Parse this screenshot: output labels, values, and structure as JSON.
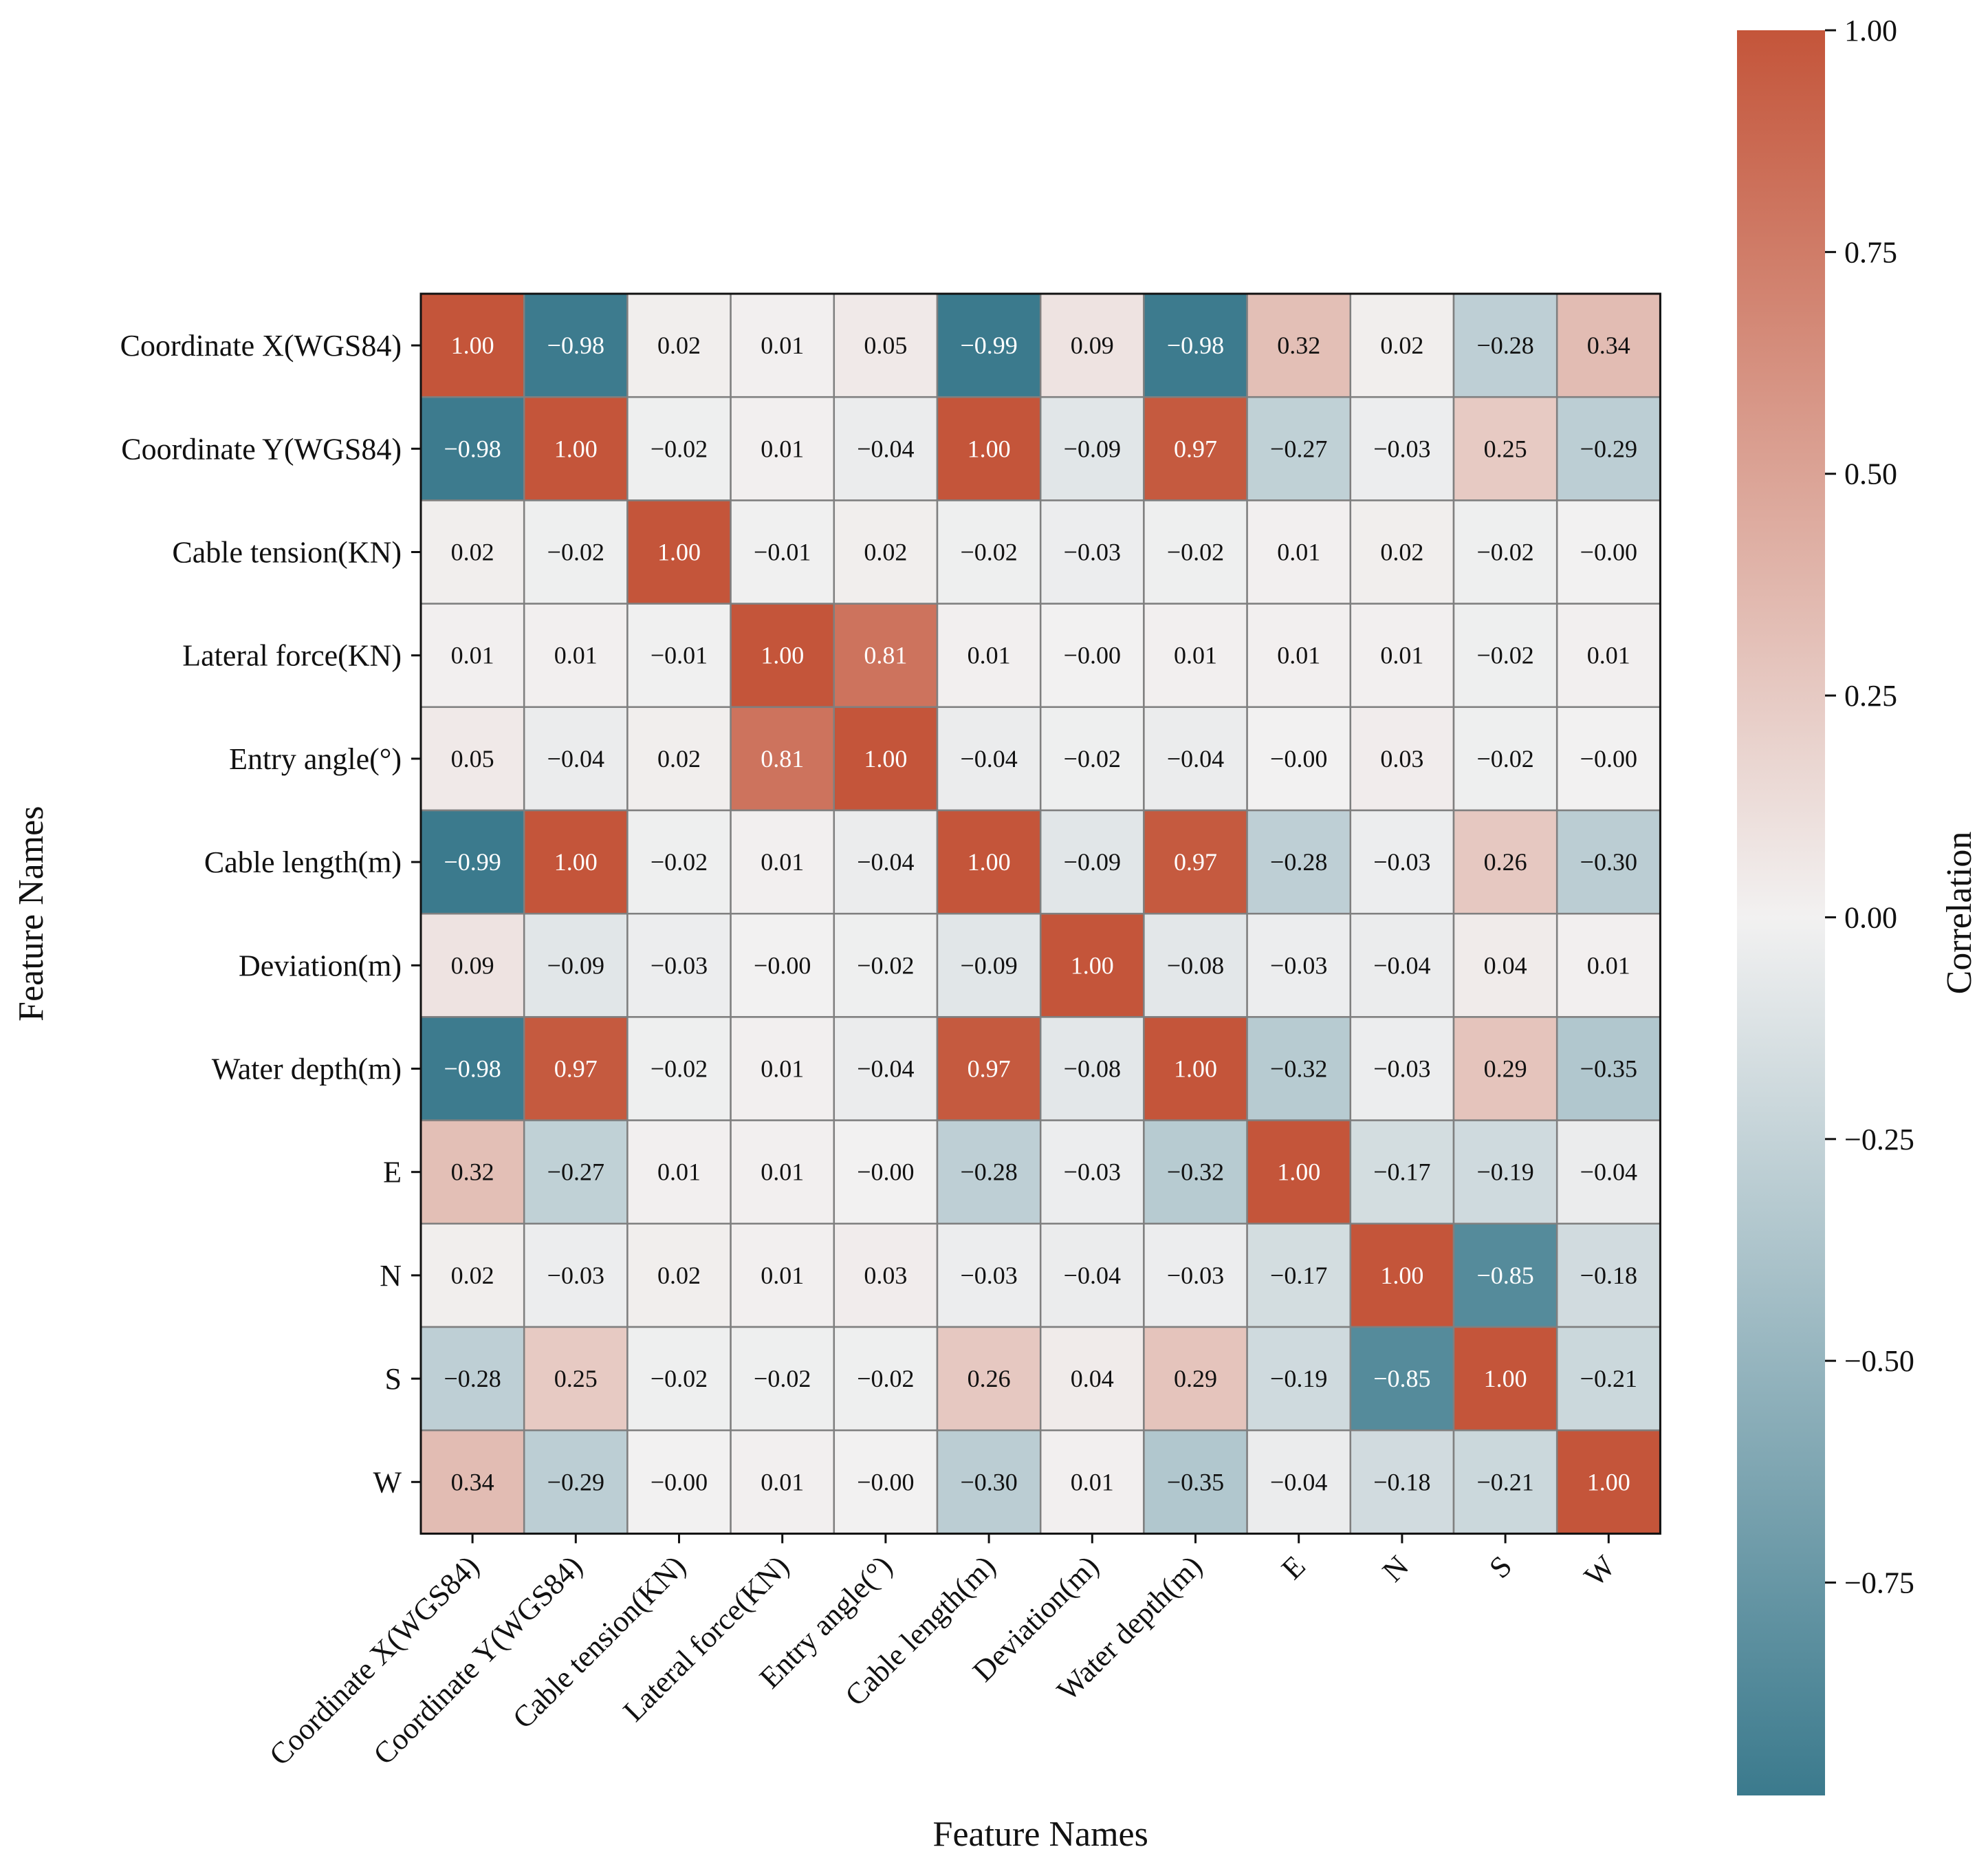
{
  "chart_data": {
    "type": "heatmap",
    "title": "",
    "xlabel": "Feature Names",
    "ylabel": "Feature Names",
    "colorbar_label": "Correlation",
    "colorbar_ticks": [
      "1.00",
      "0.75",
      "0.50",
      "0.25",
      "0.00",
      "−0.25",
      "−0.50",
      "−0.75"
    ],
    "colorbar_tick_values": [
      1.0,
      0.75,
      0.5,
      0.25,
      0.0,
      -0.25,
      -0.5,
      -0.75
    ],
    "vmin": -0.99,
    "vmax": 1.0,
    "colors": {
      "positive": "#c4553a",
      "neutral": "#f2f1f1",
      "negative": "#3b7a8d"
    },
    "categories": [
      "Coordinate X(WGS84)",
      "Coordinate Y(WGS84)",
      "Cable tension(KN)",
      "Lateral force(KN)",
      "Entry angle(°)",
      "Cable length(m)",
      "Deviation(m)",
      "Water depth(m)",
      "E",
      "N",
      "S",
      "W"
    ],
    "values": [
      [
        1.0,
        -0.98,
        0.02,
        0.01,
        0.05,
        -0.99,
        0.09,
        -0.98,
        0.32,
        0.02,
        -0.28,
        0.34
      ],
      [
        -0.98,
        1.0,
        -0.02,
        0.01,
        -0.04,
        1.0,
        -0.09,
        0.97,
        -0.27,
        -0.03,
        0.25,
        -0.29
      ],
      [
        0.02,
        -0.02,
        1.0,
        -0.01,
        0.02,
        -0.02,
        -0.03,
        -0.02,
        0.01,
        0.02,
        -0.02,
        -0.0
      ],
      [
        0.01,
        0.01,
        -0.01,
        1.0,
        0.81,
        0.01,
        -0.0,
        0.01,
        0.01,
        0.01,
        -0.02,
        0.01
      ],
      [
        0.05,
        -0.04,
        0.02,
        0.81,
        1.0,
        -0.04,
        -0.02,
        -0.04,
        -0.0,
        0.03,
        -0.02,
        -0.0
      ],
      [
        -0.99,
        1.0,
        -0.02,
        0.01,
        -0.04,
        1.0,
        -0.09,
        0.97,
        -0.28,
        -0.03,
        0.26,
        -0.3
      ],
      [
        0.09,
        -0.09,
        -0.03,
        -0.0,
        -0.02,
        -0.09,
        1.0,
        -0.08,
        -0.03,
        -0.04,
        0.04,
        0.01
      ],
      [
        -0.98,
        0.97,
        -0.02,
        0.01,
        -0.04,
        0.97,
        -0.08,
        1.0,
        -0.32,
        -0.03,
        0.29,
        -0.35
      ],
      [
        0.32,
        -0.27,
        0.01,
        0.01,
        -0.0,
        -0.28,
        -0.03,
        -0.32,
        1.0,
        -0.17,
        -0.19,
        -0.04
      ],
      [
        0.02,
        -0.03,
        0.02,
        0.01,
        0.03,
        -0.03,
        -0.04,
        -0.03,
        -0.17,
        1.0,
        -0.85,
        -0.18
      ],
      [
        -0.28,
        0.25,
        -0.02,
        -0.02,
        -0.02,
        0.26,
        0.04,
        0.29,
        -0.19,
        -0.85,
        1.0,
        -0.21
      ],
      [
        0.34,
        -0.29,
        -0.0,
        0.01,
        -0.0,
        -0.3,
        0.01,
        -0.35,
        -0.04,
        -0.18,
        -0.21,
        1.0
      ]
    ]
  }
}
